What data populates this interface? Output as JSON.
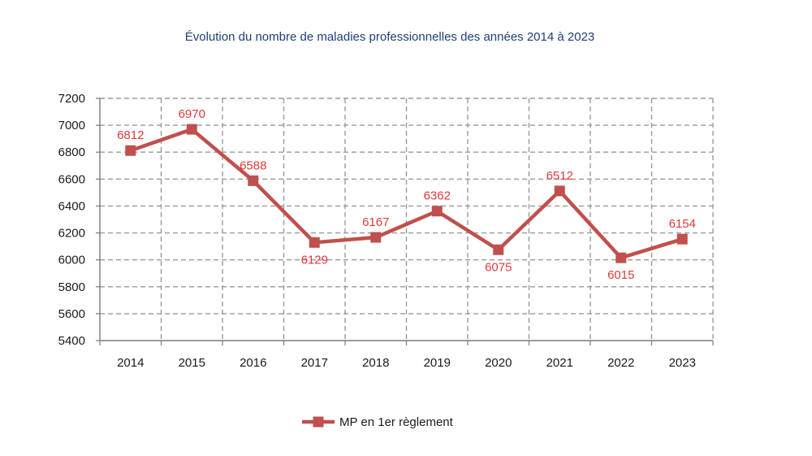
{
  "chart_data": {
    "type": "line",
    "title": "Évolution du nombre de maladies professionnelles des années 2014 à 2023",
    "xlabel": "",
    "ylabel": "",
    "categories": [
      "2014",
      "2015",
      "2016",
      "2017",
      "2018",
      "2019",
      "2020",
      "2021",
      "2022",
      "2023"
    ],
    "series": [
      {
        "name": "MP en 1er règlement",
        "values": [
          6812,
          6970,
          6588,
          6129,
          6167,
          6362,
          6075,
          6512,
          6015,
          6154
        ],
        "color": "#c0504d",
        "label_color": "#e03a3a",
        "marker": "square"
      }
    ],
    "ylim": [
      5400,
      7200
    ],
    "yticks": [
      5400,
      5600,
      5800,
      6000,
      6200,
      6400,
      6600,
      6800,
      7000,
      7200
    ],
    "grid": true,
    "grid_style": "dashed",
    "legend_position": "bottom-center"
  }
}
